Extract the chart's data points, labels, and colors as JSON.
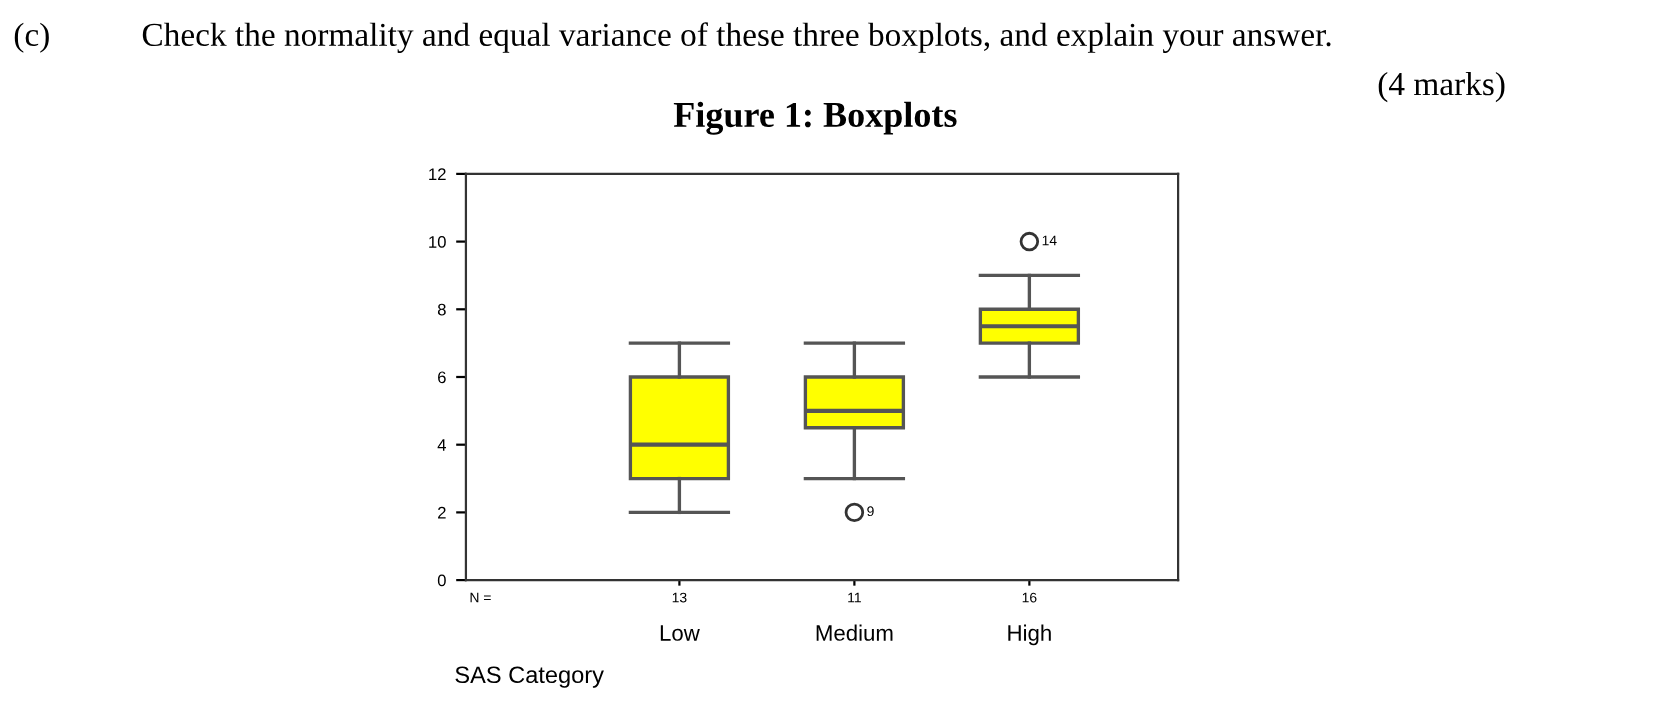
{
  "chart_data": {
    "type": "box",
    "title": "Figure 1: Boxplots",
    "xlabel": "SAS Category",
    "categories": [
      "Low",
      "Medium",
      "High"
    ],
    "series": [
      {
        "color": "#ffff00",
        "boxes": [
          {
            "low": 2,
            "q1": 3,
            "median": 4,
            "q3": 6,
            "high": 7
          },
          {
            "low": 3,
            "q1": 4.5,
            "median": 5,
            "q3": 6,
            "high": 7,
            "outliers": [
              2
            ]
          },
          {
            "low": 6,
            "q1": 7,
            "median": 7.5,
            "q3": 8,
            "high": 9,
            "outliers": [
              10
            ]
          }
        ]
      }
    ],
    "ylim": [
      0,
      12
    ],
    "yticks": [
      0,
      2,
      4,
      6,
      8,
      10,
      12
    ],
    "grid": false,
    "legend": false,
    "annotations": [
      "(c)",
      "Check the normality and equal variance of these three boxplots, and explain your answer.",
      "(4 marks)",
      "N =",
      "13",
      "11",
      "16",
      "9",
      "14"
    ]
  }
}
